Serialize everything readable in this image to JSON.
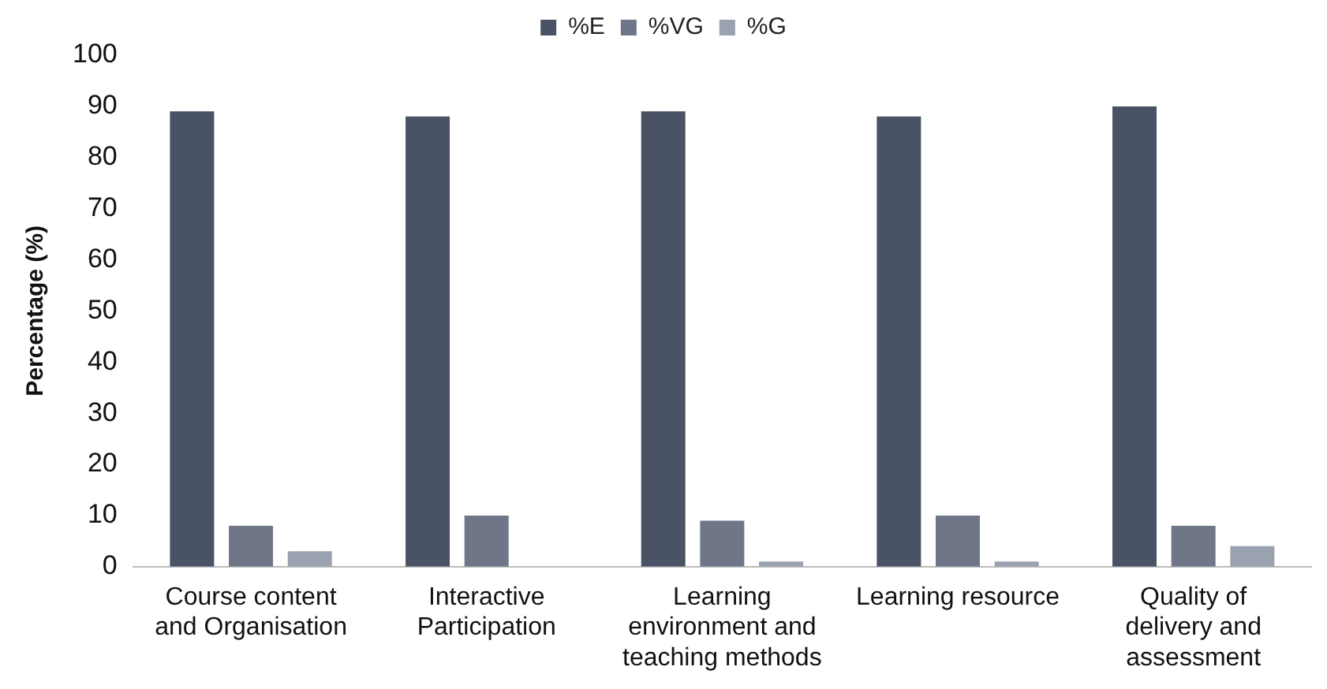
{
  "chart_data": {
    "type": "bar",
    "ylabel": "Percentage (%)",
    "categories": [
      "Course content and Organisation",
      "Interactive Participation",
      "Learning environment and teaching methods",
      "Learning resource",
      "Quality of delivery and assessment"
    ],
    "series": [
      {
        "name": "%E",
        "color": "#4a5266",
        "values": [
          89,
          88,
          89,
          88,
          90
        ]
      },
      {
        "name": "%VG",
        "color": "#6e7688",
        "values": [
          8,
          10,
          9,
          10,
          8
        ]
      },
      {
        "name": "%G",
        "color": "#9aa2b0",
        "values": [
          3,
          0,
          1,
          1,
          4
        ]
      }
    ],
    "ylim": [
      0,
      100
    ],
    "yticks": [
      0,
      10,
      20,
      30,
      40,
      50,
      60,
      70,
      80,
      90,
      100
    ],
    "grid": false,
    "legend": "top"
  }
}
